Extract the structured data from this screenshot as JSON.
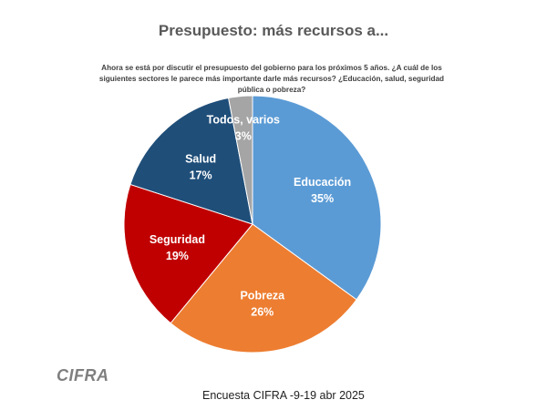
{
  "title": "Presupuesto: más recursos a...",
  "question": "Ahora se está por discutir el presupuesto del gobierno para los próximos 5 años. ¿A cuál de los siguientes sectores le parece más importante darle más recursos? ¿Educación, salud, seguridad pública o pobreza?",
  "logo": "CIFRA",
  "source": "Encuesta CIFRA -9-19 abr 2025",
  "chart_data": {
    "type": "pie",
    "title": "Presupuesto: más recursos a...",
    "slices": [
      {
        "label": "Educación",
        "value": 35,
        "value_label": "35%",
        "color": "#5b9bd5"
      },
      {
        "label": "Pobreza",
        "value": 26,
        "value_label": "26%",
        "color": "#ed7d31"
      },
      {
        "label": "Seguridad",
        "value": 19,
        "value_label": "19%",
        "color": "#c00000"
      },
      {
        "label": "Salud",
        "value": 17,
        "value_label": "17%",
        "color": "#1f4e79"
      },
      {
        "label": "Todos, varios",
        "value": 3,
        "value_label": "3%",
        "color": "#a5a5a5"
      }
    ]
  }
}
